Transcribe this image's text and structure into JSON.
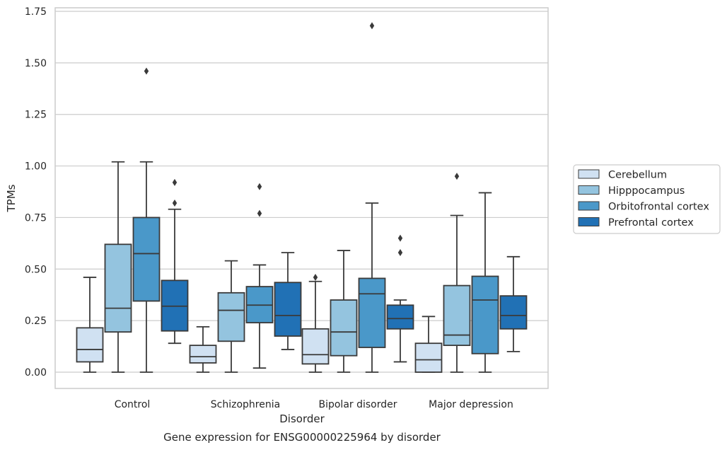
{
  "chart_data": {
    "type": "boxplot",
    "title": "Gene expression for ENSG00000225964 by disorder",
    "xlabel": "Disorder",
    "ylabel": "TPMs",
    "ylim": [
      -0.08,
      1.76
    ],
    "yticks": [
      "0.00",
      "0.25",
      "0.50",
      "0.75",
      "1.00",
      "1.25",
      "1.50",
      "1.75"
    ],
    "categories": [
      "Control",
      "Schizophrenia",
      "Bipolar disorder",
      "Major depression"
    ],
    "grid": "horizontal",
    "legend_position": "right",
    "series": [
      {
        "name": "Cerebellum",
        "color": "#d0e1f2",
        "boxes": [
          {
            "whislo": 0.0,
            "q1": 0.05,
            "med": 0.11,
            "q3": 0.215,
            "whishi": 0.46,
            "fliers": []
          },
          {
            "whislo": 0.0,
            "q1": 0.045,
            "med": 0.075,
            "q3": 0.13,
            "whishi": 0.22,
            "fliers": []
          },
          {
            "whislo": 0.0,
            "q1": 0.04,
            "med": 0.085,
            "q3": 0.21,
            "whishi": 0.44,
            "fliers": [
              0.46
            ]
          },
          {
            "whislo": 0.0,
            "q1": 0.0,
            "med": 0.06,
            "q3": 0.14,
            "whishi": 0.27,
            "fliers": []
          }
        ]
      },
      {
        "name": "Hipppocampus",
        "color": "#94c4df",
        "boxes": [
          {
            "whislo": 0.0,
            "q1": 0.195,
            "med": 0.31,
            "q3": 0.62,
            "whishi": 1.02,
            "fliers": []
          },
          {
            "whislo": 0.0,
            "q1": 0.15,
            "med": 0.3,
            "q3": 0.385,
            "whishi": 0.54,
            "fliers": []
          },
          {
            "whislo": 0.0,
            "q1": 0.08,
            "med": 0.195,
            "q3": 0.35,
            "whishi": 0.59,
            "fliers": []
          },
          {
            "whislo": 0.0,
            "q1": 0.13,
            "med": 0.18,
            "q3": 0.42,
            "whishi": 0.76,
            "fliers": [
              0.95
            ]
          }
        ]
      },
      {
        "name": "Orbitofrontal cortex",
        "color": "#4a98c9",
        "boxes": [
          {
            "whislo": 0.0,
            "q1": 0.345,
            "med": 0.575,
            "q3": 0.75,
            "whishi": 1.02,
            "fliers": [
              1.46
            ]
          },
          {
            "whislo": 0.02,
            "q1": 0.24,
            "med": 0.325,
            "q3": 0.415,
            "whishi": 0.52,
            "fliers": [
              0.77,
              0.9
            ]
          },
          {
            "whislo": 0.0,
            "q1": 0.12,
            "med": 0.38,
            "q3": 0.455,
            "whishi": 0.82,
            "fliers": [
              1.68
            ]
          },
          {
            "whislo": 0.0,
            "q1": 0.09,
            "med": 0.35,
            "q3": 0.465,
            "whishi": 0.87,
            "fliers": []
          }
        ]
      },
      {
        "name": "Prefrontal cortex",
        "color": "#2171b5",
        "boxes": [
          {
            "whislo": 0.14,
            "q1": 0.2,
            "med": 0.32,
            "q3": 0.445,
            "whishi": 0.79,
            "fliers": [
              0.82,
              0.92
            ]
          },
          {
            "whislo": 0.11,
            "q1": 0.175,
            "med": 0.275,
            "q3": 0.435,
            "whishi": 0.58,
            "fliers": []
          },
          {
            "whislo": 0.05,
            "q1": 0.21,
            "med": 0.26,
            "q3": 0.325,
            "whishi": 0.35,
            "fliers": [
              0.58,
              0.65
            ]
          },
          {
            "whislo": 0.1,
            "q1": 0.21,
            "med": 0.275,
            "q3": 0.37,
            "whishi": 0.56,
            "fliers": []
          }
        ]
      }
    ]
  }
}
